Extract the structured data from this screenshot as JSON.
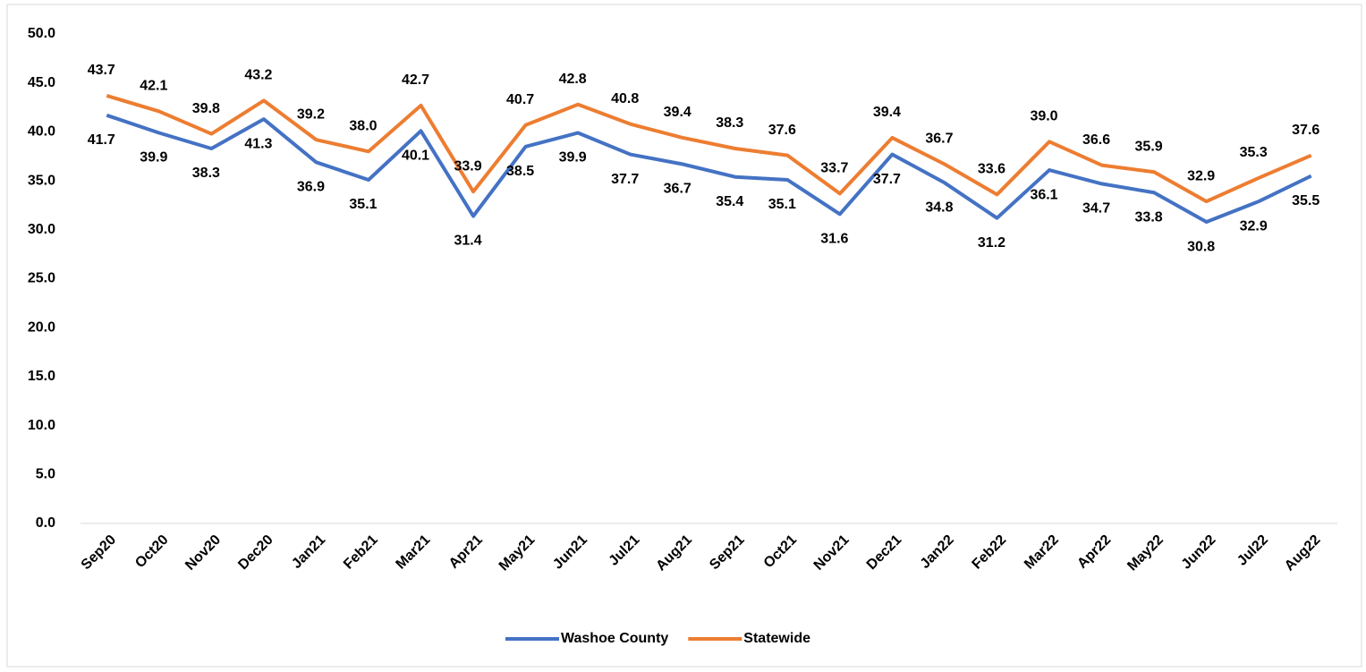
{
  "chart_data": {
    "type": "line",
    "categories": [
      "Sep20",
      "Oct20",
      "Nov20",
      "Dec20",
      "Jan21",
      "Feb21",
      "Mar21",
      "Apr21",
      "May21",
      "Jun21",
      "Jul21",
      "Aug21",
      "Sep21",
      "Oct21",
      "Nov21",
      "Dec21",
      "Jan22",
      "Feb22",
      "Mar22",
      "Apr22",
      "May22",
      "Jun22",
      "Jul22",
      "Aug22"
    ],
    "series": [
      {
        "name": "Washoe County",
        "color": "#4472c4",
        "label_position": "below",
        "values": [
          41.7,
          39.9,
          38.3,
          41.3,
          36.9,
          35.1,
          40.1,
          31.4,
          38.5,
          39.9,
          37.7,
          36.7,
          35.4,
          35.1,
          31.6,
          37.7,
          34.8,
          31.2,
          36.1,
          34.7,
          33.8,
          30.8,
          32.9,
          35.5
        ],
        "value_labels": [
          "41.7",
          "39.9",
          "38.3",
          "41.3",
          "36.9",
          "35.1",
          "40.1",
          "31.4",
          "38.5",
          "39.9",
          "37.7",
          "36.7",
          "35.4",
          "35.1",
          "31.6",
          "37.7",
          "34.8",
          "31.2",
          "36.1",
          "34.7",
          "33.8",
          "30.8",
          "32.9",
          "35.5"
        ]
      },
      {
        "name": "Statewide",
        "color": "#ed7d31",
        "label_position": "above",
        "values": [
          43.7,
          42.1,
          39.8,
          43.2,
          39.2,
          38.0,
          42.7,
          33.9,
          40.7,
          42.8,
          40.8,
          39.4,
          38.3,
          37.6,
          33.7,
          39.4,
          36.7,
          33.6,
          39.0,
          36.6,
          35.9,
          32.9,
          35.3,
          37.6
        ],
        "value_labels": [
          "43.7",
          "42.1",
          "39.8",
          "43.2",
          "39.2",
          "38.0",
          "42.7",
          "33.9",
          "40.7",
          "42.8",
          "40.8",
          "39.4",
          "38.3",
          "37.6",
          "33.7",
          "39.4",
          "36.7",
          "33.6",
          "39.0",
          "36.6",
          "35.9",
          "32.9",
          "35.3",
          "37.6"
        ]
      }
    ],
    "ylim": [
      0,
      50
    ],
    "yticks": [
      {
        "value": 0,
        "label": "0.0"
      },
      {
        "value": 5,
        "label": "5.0"
      },
      {
        "value": 10,
        "label": "10.0"
      },
      {
        "value": 15,
        "label": "15.0"
      },
      {
        "value": 20,
        "label": "20.0"
      },
      {
        "value": 25,
        "label": "25.0"
      },
      {
        "value": 30,
        "label": "30.0"
      },
      {
        "value": 35,
        "label": "35.0"
      },
      {
        "value": 40,
        "label": "40.0"
      },
      {
        "value": 45,
        "label": "45.0"
      },
      {
        "value": 50,
        "label": "50.0"
      }
    ],
    "grid": false,
    "legend": "bottom"
  }
}
